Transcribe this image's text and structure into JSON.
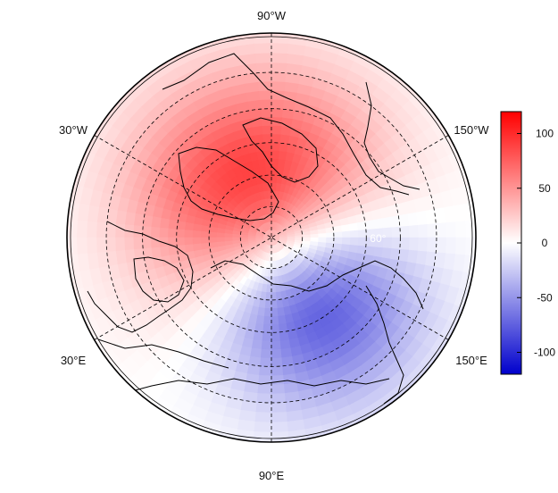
{
  "map": {
    "projection": "north-polar-stereographic",
    "longitude_labels": [
      {
        "text": "90°W"
      },
      {
        "text": "30°W"
      },
      {
        "text": "150°W"
      },
      {
        "text": "30°E"
      },
      {
        "text": "150°E"
      },
      {
        "text": "90°E"
      }
    ],
    "latitude_label": "60°",
    "field": {
      "positive_center": {
        "lon": -75,
        "lat": 78
      },
      "negative_center": {
        "lon": 125,
        "lat": 68
      },
      "max": 115,
      "min": -115
    }
  },
  "colorbar": {
    "ticks": [
      "100",
      "50",
      "0",
      "-50",
      "-100"
    ],
    "tick_values": [
      100,
      50,
      0,
      -50,
      -100
    ],
    "range": [
      -120,
      120
    ],
    "colors": {
      "high": "#ff0000",
      "mid": "#ffffff",
      "low": "#0000cc"
    }
  }
}
